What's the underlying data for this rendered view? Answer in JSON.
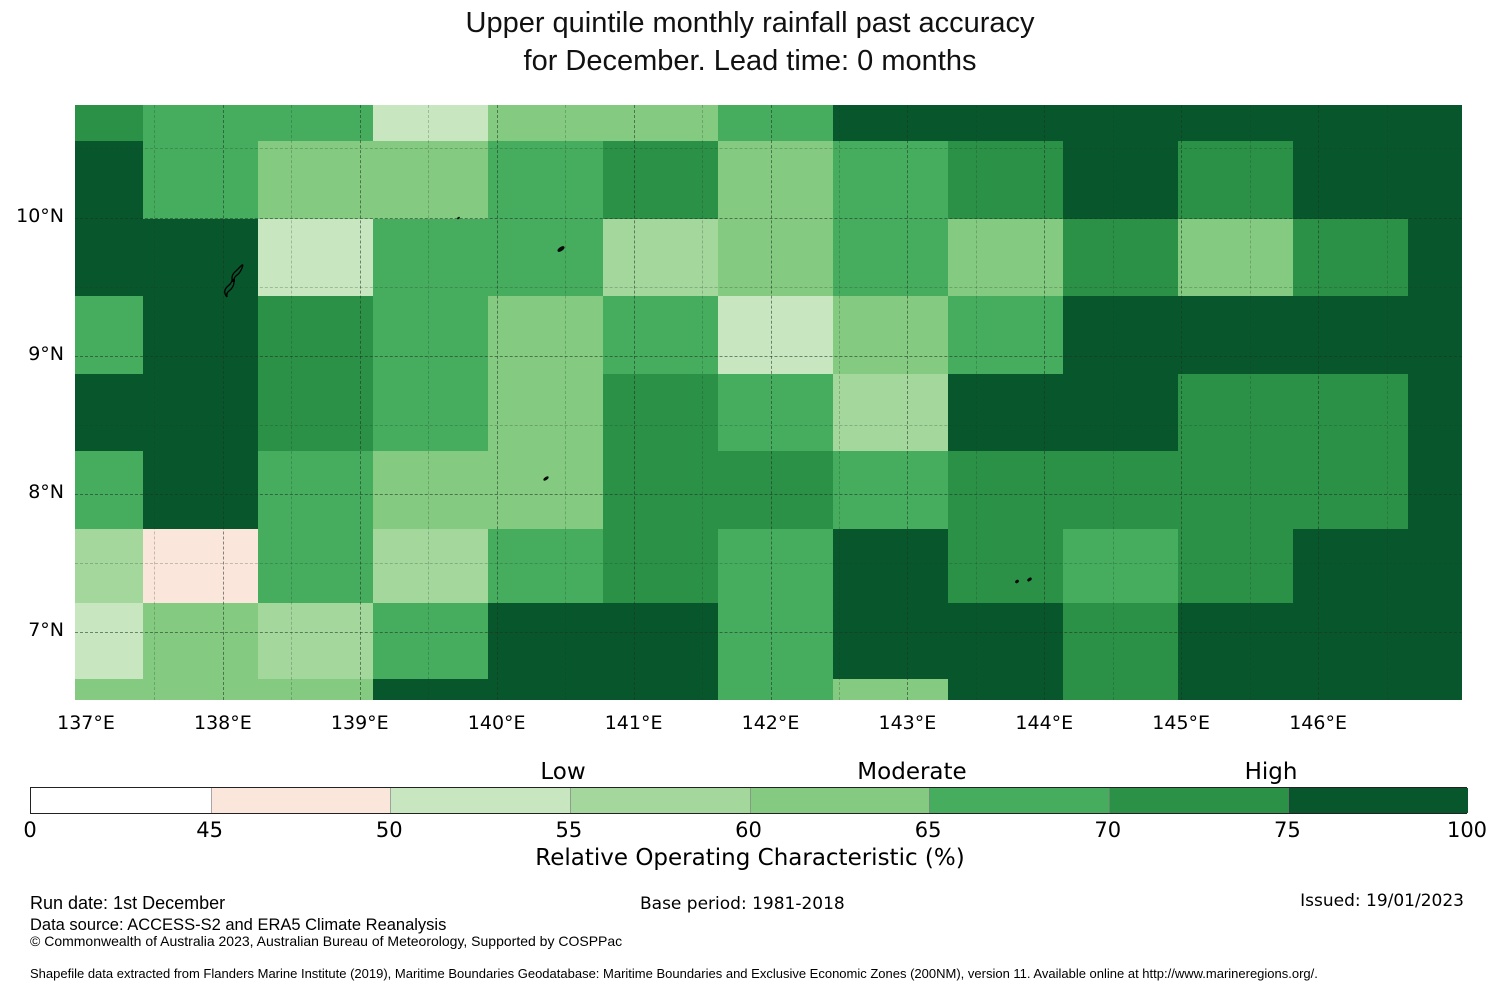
{
  "title": {
    "line1": "Upper quintile monthly rainfall past accuracy",
    "line2": "for December. Lead time: 0 months"
  },
  "legend": {
    "categories": [
      "Low",
      "Moderate",
      "High"
    ],
    "tick_labels": [
      "0",
      "45",
      "50",
      "55",
      "60",
      "65",
      "70",
      "75",
      "100"
    ],
    "bin_colors": [
      "#ffffff",
      "#fbe6db",
      "#c8e7c0",
      "#a4d79c",
      "#84ca81",
      "#46ac5e",
      "#2b9147",
      "#08572c"
    ],
    "axis_label": "Relative Operating Characteristic (%)"
  },
  "chart_data": {
    "type": "heatmap",
    "title": "Upper quintile monthly rainfall past accuracy for December. Lead time: 0 months",
    "x_tick_labels": [
      "137°E",
      "138°E",
      "139°E",
      "140°E",
      "141°E",
      "142°E",
      "143°E",
      "144°E",
      "145°E",
      "146°E"
    ],
    "x_tick_values": [
      137,
      138,
      139,
      140,
      141,
      142,
      143,
      144,
      145,
      146
    ],
    "y_tick_labels": [
      "10°N",
      "9°N",
      "8°N",
      "7°N"
    ],
    "y_tick_values": [
      10,
      9,
      8,
      7
    ],
    "grid_on": true,
    "legend_position": "bottom",
    "colorbar_boundaries": [
      0,
      45,
      50,
      55,
      60,
      65,
      70,
      75,
      100
    ],
    "bins": [
      "0-45",
      "45-50",
      "50-55",
      "55-60",
      "60-65",
      "65-70",
      "70-75",
      "75-100"
    ],
    "lon_cell_edges": [
      136.92,
      137.42,
      138.26,
      139.1,
      139.94,
      140.78,
      141.62,
      142.46,
      143.3,
      144.14,
      144.98,
      145.82,
      146.66,
      147.05
    ],
    "lat_cell_edges": [
      10.81,
      10.55,
      9.99,
      9.43,
      8.87,
      8.31,
      7.75,
      7.21,
      6.66,
      6.51
    ],
    "values_are": "index into bins (ROC % category) per cell, rows north to south",
    "grid": [
      [
        6,
        5,
        5,
        2,
        4,
        4,
        5,
        7,
        7,
        7,
        7,
        7,
        7
      ],
      [
        7,
        5,
        4,
        4,
        5,
        6,
        4,
        5,
        6,
        7,
        6,
        7,
        7
      ],
      [
        7,
        7,
        2,
        5,
        5,
        3,
        4,
        5,
        4,
        6,
        4,
        6,
        7
      ],
      [
        5,
        7,
        6,
        5,
        4,
        5,
        2,
        4,
        5,
        7,
        7,
        7,
        7
      ],
      [
        7,
        7,
        6,
        5,
        4,
        6,
        5,
        3,
        7,
        7,
        6,
        6,
        7
      ],
      [
        5,
        7,
        5,
        4,
        4,
        6,
        6,
        5,
        6,
        6,
        6,
        6,
        7
      ],
      [
        3,
        1,
        5,
        3,
        5,
        6,
        5,
        7,
        6,
        5,
        6,
        7,
        7
      ],
      [
        2,
        4,
        3,
        5,
        7,
        7,
        5,
        7,
        7,
        6,
        7,
        7,
        7
      ],
      [
        4,
        4,
        4,
        7,
        7,
        7,
        5,
        4,
        7,
        6,
        7,
        7,
        7
      ]
    ]
  },
  "islands": [
    {
      "kind": "outlined-island",
      "lon": 138.08,
      "lat": 9.55,
      "w": 27,
      "h": 40
    },
    {
      "kind": "dot",
      "lon": 139.72,
      "lat": 10.0,
      "w": 3,
      "h": 2
    },
    {
      "kind": "islet",
      "lon": 140.47,
      "lat": 9.77,
      "w": 8,
      "h": 4
    },
    {
      "kind": "islet",
      "lon": 140.36,
      "lat": 8.11,
      "w": 6,
      "h": 3
    },
    {
      "kind": "dot",
      "lon": 143.8,
      "lat": 7.37,
      "w": 4,
      "h": 3
    },
    {
      "kind": "dot",
      "lon": 143.89,
      "lat": 7.38,
      "w": 5,
      "h": 3
    }
  ],
  "footer": {
    "run_date": "Run date: 1st December",
    "data_source": "Data source: ACCESS-S2 and ERA5 Climate Reanalysis",
    "copyright": "© Commonwealth of Australia 2023, Australian Bureau of Meteorology, Supported by COSPPac",
    "base_period": "Base period: 1981-2018",
    "issued": "Issued: 19/01/2023",
    "shapefile": "Shapefile data extracted from Flanders Marine Institute (2019), Maritime Boundaries Geodatabase: Maritime Boundaries and Exclusive Economic Zones (200NM), version 11. Available online at http://www.marineregions.org/."
  }
}
